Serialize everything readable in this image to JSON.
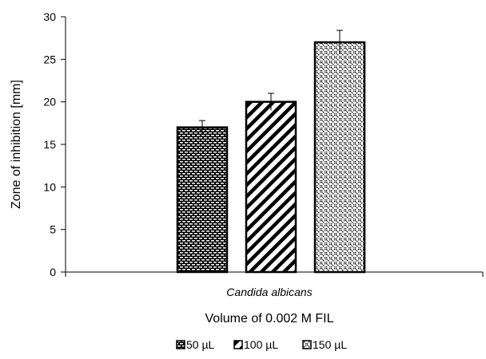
{
  "chart_data": {
    "type": "bar",
    "categories": [
      "Candida albicans"
    ],
    "series": [
      {
        "name": "50 µL",
        "values": [
          17
        ],
        "error": [
          0.8
        ],
        "pattern": "brick-dots"
      },
      {
        "name": "100 µL",
        "values": [
          20
        ],
        "error": [
          1.0
        ],
        "pattern": "diagonal-stripes"
      },
      {
        "name": "150 µL",
        "values": [
          27
        ],
        "error": [
          1.4
        ],
        "pattern": "zigzag-weave"
      }
    ],
    "title": "",
    "xlabel": "Volume of 0.002 M FIL",
    "ylabel": "Zone of inhibition [mm]",
    "ylim": [
      0,
      30
    ],
    "yticks": [
      "0",
      "5",
      "10",
      "15",
      "20",
      "25",
      "30"
    ],
    "grid": false,
    "legend_position": "bottom-center",
    "colors": {
      "ink": "#000000",
      "fill": "#ffffff"
    }
  }
}
